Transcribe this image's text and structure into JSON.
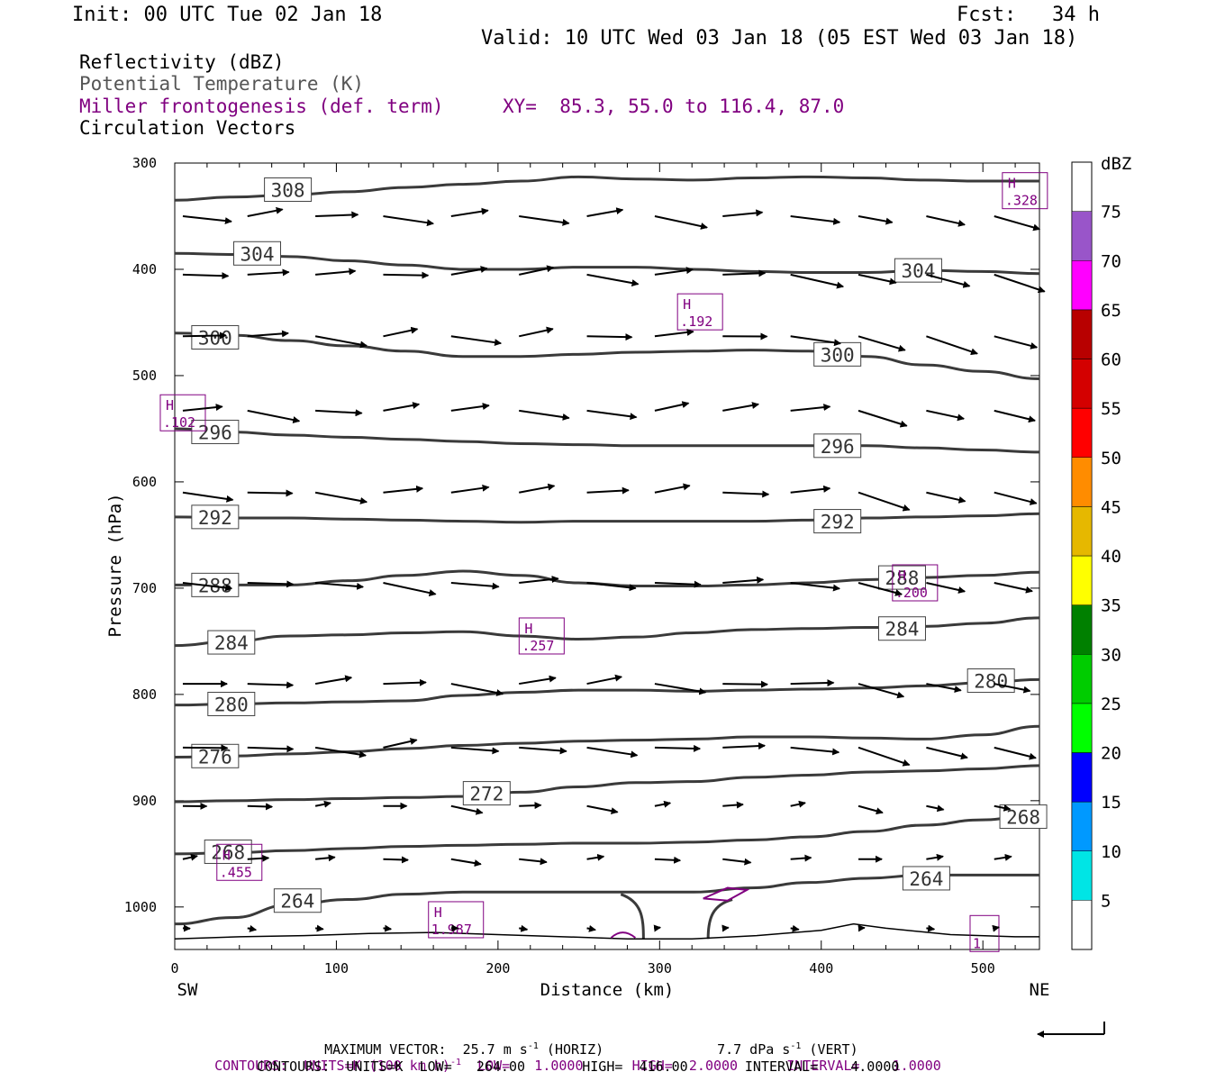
{
  "header": {
    "init": "Init: 00 UTC Tue 02 Jan 18",
    "fcst": "Fcst:   34 h",
    "valid": "Valid: 10 UTC Wed 03 Jan 18 (05 EST Wed 03 Jan 18)",
    "field1": "Reflectivity (dBZ)",
    "field2": "Potential Temperature (K)",
    "field3": "Miller frontogenesis (def. term)",
    "xy": "XY=  85.3, 55.0 to 116.4, 87.0",
    "field4": "Circulation Vectors"
  },
  "footer": {
    "max_vector_prefix": "MAXIMUM VECTOR:  25.7 m s",
    "max_vector_horiz": " (HORIZ)",
    "max_vector_vert_prefix": "7.7 dPa s",
    "max_vector_vert": " (VERT)",
    "sup": "-1",
    "contours1_a": "CONTOURS:  UNITS=K (100 km h)",
    "contours1_b": "  LOW=   1.0000      HIGH=  2.0000      INTERVAL=    1.0000",
    "contours2": "CONTOURS:  UNITS=K  LOW=   264.00       HIGH=  416.00       INTERVAL=    4.0000"
  },
  "colors": {
    "theta": "#3a3a3a",
    "fronto": "#800080",
    "vectors": "#000000"
  },
  "chart_data": {
    "type": "cross-section",
    "xlabel": "Distance (km)",
    "ylabel": "Pressure (hPa)",
    "xlim": [
      0,
      535
    ],
    "ylim": [
      1040,
      300
    ],
    "x_ticks": [
      "0",
      "100",
      "200",
      "300",
      "400",
      "500"
    ],
    "y_ticks": [
      "300",
      "400",
      "500",
      "600",
      "700",
      "800",
      "900",
      "1000"
    ],
    "x_tick_values": [
      0,
      100,
      200,
      300,
      400,
      500
    ],
    "y_tick_values": [
      300,
      400,
      500,
      600,
      700,
      800,
      900,
      1000
    ],
    "end_labels": {
      "left": "SW",
      "right": "NE"
    },
    "colorbar": {
      "title": "dBZ",
      "labels": [
        "5",
        "10",
        "15",
        "20",
        "25",
        "30",
        "35",
        "40",
        "45",
        "50",
        "55",
        "60",
        "65",
        "70",
        "75"
      ],
      "colors": [
        "#00e5e5",
        "#0099ff",
        "#0000ff",
        "#00ff00",
        "#00cc00",
        "#008000",
        "#ffff00",
        "#e6b800",
        "#ff8c00",
        "#ff0000",
        "#d40000",
        "#b80000",
        "#ff00ff",
        "#9955c9"
      ]
    },
    "theta_contours": [
      {
        "label": "308",
        "p": [
          335,
          332,
          330,
          327,
          323,
          320,
          317,
          313,
          315,
          316,
          314,
          313,
          314,
          316,
          317,
          317
        ],
        "labels_at": [
          [
            70,
            325
          ]
        ]
      },
      {
        "label": "304",
        "p": [
          385,
          386,
          388,
          392,
          396,
          400,
          400,
          398,
          398,
          400,
          402,
          403,
          403,
          401,
          402,
          404
        ],
        "labels_at": [
          [
            51,
            385
          ],
          [
            460,
            401
          ]
        ]
      },
      {
        "label": "300",
        "p": [
          460,
          462,
          467,
          472,
          477,
          482,
          482,
          480,
          478,
          477,
          476,
          477,
          482,
          490,
          496,
          503
        ],
        "labels_at": [
          [
            25,
            464
          ],
          [
            410,
            480
          ]
        ]
      },
      {
        "label": "296",
        "p": [
          550,
          553,
          556,
          558,
          560,
          562,
          564,
          565,
          566,
          566,
          566,
          566,
          566,
          568,
          570,
          572
        ],
        "labels_at": [
          [
            25,
            553
          ],
          [
            410,
            566
          ]
        ]
      },
      {
        "label": "292",
        "p": [
          633,
          634,
          634,
          635,
          636,
          637,
          638,
          637,
          637,
          637,
          637,
          636,
          634,
          633,
          632,
          630
        ],
        "labels_at": [
          [
            25,
            633
          ],
          [
            410,
            637
          ]
        ]
      },
      {
        "label": "288",
        "p": [
          697,
          697,
          697,
          693,
          688,
          684,
          688,
          695,
          698,
          698,
          697,
          695,
          692,
          690,
          688,
          685
        ],
        "labels_at": [
          [
            25,
            697
          ],
          [
            450,
            690
          ]
        ]
      },
      {
        "label": "284",
        "p": [
          754,
          750,
          745,
          744,
          742,
          741,
          745,
          748,
          746,
          742,
          739,
          738,
          737,
          736,
          733,
          728
        ],
        "labels_at": [
          [
            35,
            751
          ],
          [
            450,
            738
          ]
        ]
      },
      {
        "label": "280",
        "p": [
          810,
          809,
          808,
          807,
          806,
          801,
          798,
          796,
          796,
          797,
          796,
          795,
          794,
          792,
          789,
          786
        ],
        "labels_at": [
          [
            35,
            809
          ],
          [
            505,
            787
          ]
        ]
      },
      {
        "label": "276",
        "p": [
          859,
          858,
          856,
          854,
          851,
          848,
          846,
          844,
          843,
          842,
          840,
          840,
          841,
          842,
          838,
          830
        ],
        "labels_at": [
          [
            25,
            858
          ]
        ]
      },
      {
        "label": "272",
        "p": [
          901,
          900,
          899,
          898,
          897,
          896,
          892,
          887,
          883,
          882,
          878,
          876,
          873,
          872,
          870,
          867
        ],
        "labels_at": [
          [
            193,
            893
          ]
        ]
      },
      {
        "label": "268",
        "p": [
          950,
          949,
          947,
          945,
          943,
          942,
          941,
          940,
          940,
          939,
          937,
          934,
          929,
          923,
          918,
          912
        ],
        "labels_at": [
          [
            33,
            948
          ],
          [
            525,
            915
          ]
        ]
      },
      {
        "label": "264",
        "p": [
          1016,
          1010,
          998,
          993,
          988,
          986,
          986,
          986,
          986,
          986,
          982,
          977,
          973,
          970,
          970,
          970
        ],
        "labels_at": [
          [
            76,
            994
          ],
          [
            465,
            973
          ]
        ]
      }
    ],
    "fronto_maxima": [
      {
        "label": "H",
        "value": ".328",
        "x": 526,
        "p": 326
      },
      {
        "label": "H",
        "value": ".192",
        "x": 325,
        "p": 440
      },
      {
        "label": "H",
        "value": ".102",
        "x": 5,
        "p": 535
      },
      {
        "label": "H",
        "value": ".200",
        "x": 458,
        "p": 695
      },
      {
        "label": "H",
        "value": ".257",
        "x": 227,
        "p": 745
      },
      {
        "label": "H",
        "value": ".455",
        "x": 40,
        "p": 958
      },
      {
        "label": "H",
        "value": "1.987",
        "x": 174,
        "p": 1012
      },
      {
        "label": "",
        "value": "1",
        "x": 501,
        "p": 1025
      }
    ],
    "vector_rows_p": [
      350,
      405,
      463,
      533,
      610,
      695,
      790,
      850,
      905,
      955,
      1020
    ]
  }
}
